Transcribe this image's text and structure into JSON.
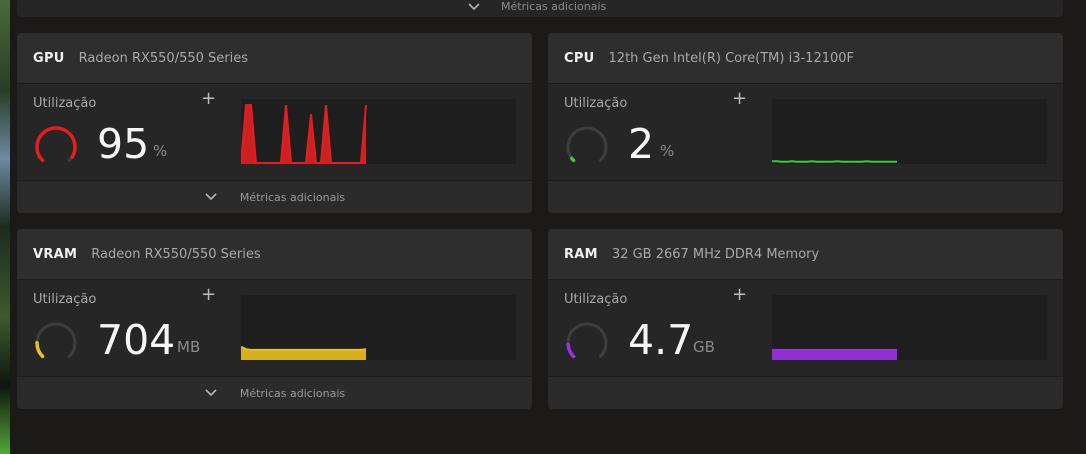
{
  "top_panel": {
    "more_label": "Métricas adicionais"
  },
  "cards": {
    "gpu": {
      "title": "GPU",
      "subtitle": "Radeon RX550/550 Series",
      "util_label": "Utilização",
      "value": "95",
      "unit": "%",
      "more_label": "Métricas adicionais",
      "color": "#e02020",
      "gauge_fraction": 0.95,
      "chart_data": {
        "type": "area",
        "x": [
          0,
          1,
          2,
          3,
          4,
          5,
          6,
          7,
          8,
          9,
          10,
          11,
          12,
          13,
          14,
          15,
          16,
          17,
          18,
          19,
          20,
          21,
          22,
          23,
          24,
          25
        ],
        "values": [
          0,
          95,
          95,
          0,
          0,
          0,
          0,
          0,
          0,
          95,
          0,
          0,
          0,
          0,
          80,
          0,
          0,
          95,
          0,
          0,
          0,
          0,
          0,
          0,
          0,
          95
        ],
        "ylim": [
          0,
          100
        ]
      }
    },
    "cpu": {
      "title": "CPU",
      "subtitle": "12th Gen Intel(R) Core(TM) i3-12100F",
      "util_label": "Utilização",
      "value": "2",
      "unit": "%",
      "color": "#3ec93e",
      "gauge_fraction": 0.02,
      "chart_data": {
        "type": "line",
        "values": [
          3,
          3,
          2,
          2,
          3,
          2,
          2,
          2,
          3,
          2,
          2,
          2,
          2,
          3,
          2,
          2,
          2,
          2,
          2,
          3,
          2,
          2,
          2,
          2,
          2,
          2
        ],
        "ylim": [
          0,
          100
        ]
      }
    },
    "vram": {
      "title": "VRAM",
      "subtitle": "Radeon RX550/550 Series",
      "util_label": "Utilização",
      "value": "704",
      "unit": "MB",
      "more_label": "Métricas adicionais",
      "color": "#e8c020",
      "gauge_fraction": 0.17,
      "chart_data": {
        "type": "area",
        "values": [
          20,
          16,
          15,
          15,
          15,
          15,
          15,
          15,
          15,
          15,
          15,
          15,
          15,
          15,
          15,
          15,
          15,
          15,
          15,
          15,
          15,
          15,
          15,
          15,
          15,
          16
        ],
        "ylim": [
          0,
          100
        ]
      }
    },
    "ram": {
      "title": "RAM",
      "subtitle": "32 GB 2667 MHz DDR4 Memory",
      "util_label": "Utilização",
      "value": "4.7",
      "unit": "GB",
      "color": "#9932e0",
      "gauge_fraction": 0.15,
      "chart_data": {
        "type": "area",
        "values": [
          15,
          15,
          15,
          15,
          15,
          15,
          15,
          15,
          15,
          15,
          15,
          15,
          15,
          15,
          15,
          15,
          15,
          15,
          15,
          15,
          15,
          15,
          15,
          15,
          15,
          15
        ],
        "ylim": [
          0,
          100
        ]
      }
    }
  }
}
